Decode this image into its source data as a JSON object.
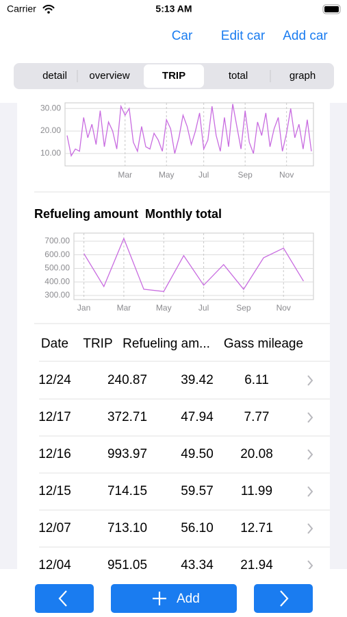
{
  "status_bar": {
    "carrier": "Carrier",
    "time": "5:13 AM"
  },
  "nav": {
    "buttons": [
      "Car",
      "Edit car",
      "Add car"
    ]
  },
  "tabs": {
    "items": [
      "detail",
      "overview",
      "TRIP",
      "total",
      "graph"
    ],
    "selected": 2
  },
  "chart_data": [
    {
      "type": "line",
      "color": "#c86be0",
      "grid": true,
      "categories": [
        null,
        null,
        null,
        null,
        null,
        null,
        null,
        null,
        null,
        null,
        null,
        null,
        null,
        null,
        "Mar",
        null,
        null,
        null,
        null,
        null,
        null,
        null,
        null,
        null,
        "May",
        null,
        null,
        null,
        null,
        null,
        null,
        null,
        null,
        "Jul",
        null,
        null,
        null,
        null,
        null,
        null,
        null,
        null,
        null,
        "Sep",
        null,
        null,
        null,
        null,
        null,
        null,
        null,
        null,
        null,
        "Nov",
        null,
        null,
        null,
        null,
        null,
        null
      ],
      "values": [
        18,
        9,
        12,
        11,
        26,
        17,
        23,
        14,
        29,
        13,
        24,
        20,
        12,
        31,
        27,
        30,
        15,
        11,
        22,
        13,
        12,
        19,
        16,
        11,
        25,
        21,
        10,
        17,
        27,
        22,
        14,
        20,
        28,
        12,
        16,
        31,
        18,
        11,
        26,
        13,
        32,
        22,
        12,
        29,
        15,
        10,
        24,
        18,
        28,
        13,
        21,
        26,
        11,
        19,
        30,
        17,
        23,
        12,
        25,
        11
      ],
      "ylim": [
        4.5,
        32.5
      ],
      "yticks": [
        {
          "value": 10,
          "label": "10.00"
        },
        {
          "value": 20,
          "label": "20.00"
        },
        {
          "value": 30,
          "label": "30.00"
        }
      ]
    },
    {
      "type": "line",
      "title": "Refueling amount  Monthly total",
      "color": "#c86be0",
      "grid": true,
      "categories": [
        "Jan",
        null,
        "Mar",
        null,
        "May",
        null,
        "Jul",
        null,
        "Sep",
        null,
        "Nov",
        null
      ],
      "values": [
        609,
        366,
        720,
        346,
        330,
        594,
        376,
        528,
        346,
        578,
        649,
        406
      ],
      "ylim": [
        270,
        760
      ],
      "yticks": [
        {
          "value": 300,
          "label": "300.00"
        },
        {
          "value": 400,
          "label": "400.00"
        },
        {
          "value": 500,
          "label": "500.00"
        },
        {
          "value": 600,
          "label": "600.00"
        },
        {
          "value": 700,
          "label": "700.00"
        }
      ]
    }
  ],
  "table": {
    "header": [
      "Date",
      "TRIP",
      "Refueling am...",
      "Gass mileage"
    ],
    "rows": [
      [
        "12/24",
        "240.87",
        "39.42",
        "6.11"
      ],
      [
        "12/17",
        "372.71",
        "47.94",
        "7.77"
      ],
      [
        "12/16",
        "993.97",
        "49.50",
        "20.08"
      ],
      [
        "12/15",
        "714.15",
        "59.57",
        "11.99"
      ],
      [
        "12/07",
        "713.10",
        "56.10",
        "12.71"
      ],
      [
        "12/04",
        "951.05",
        "43.34",
        "21.94"
      ]
    ]
  },
  "footer": {
    "add": "Add"
  }
}
